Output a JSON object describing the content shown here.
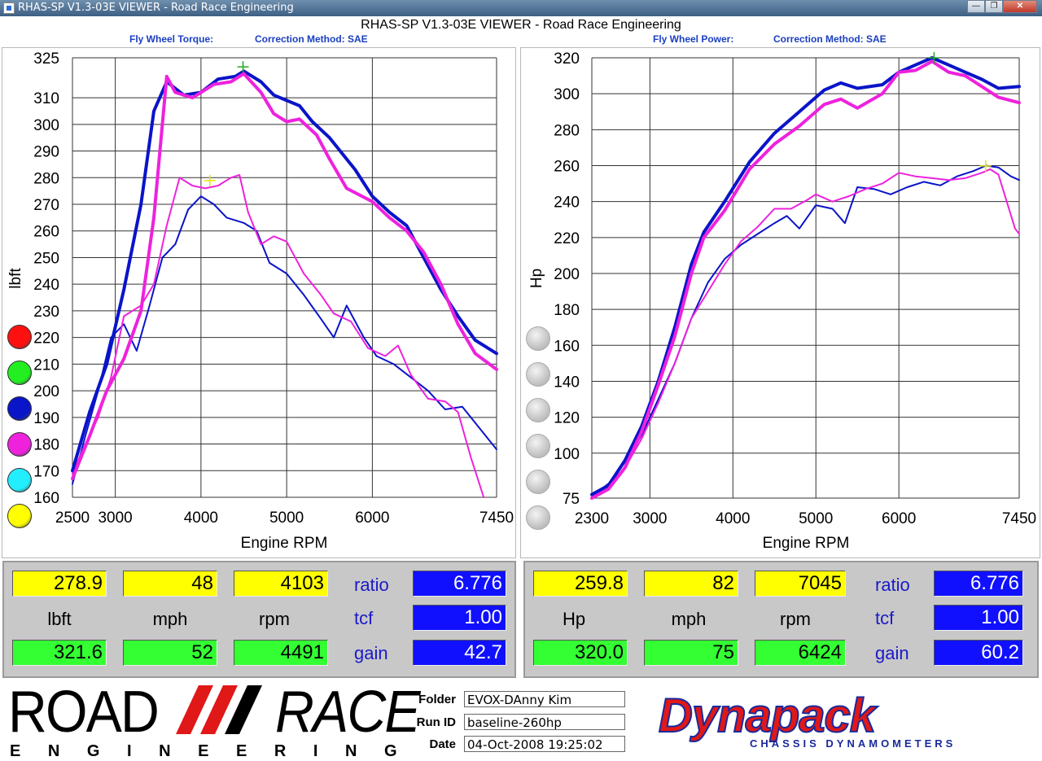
{
  "window": {
    "title": "RHAS-SP V1.3-03E VIEWER - Road Race Engineering"
  },
  "app_title": "RHAS-SP V1.3-03E VIEWER - Road Race Engineering",
  "left": {
    "heading": "Fly Wheel Torque:",
    "correction": "Correction Method: SAE",
    "readout": {
      "top_value": "278.9",
      "top_mph": "48",
      "top_rpm": "4103",
      "unit": "lbft",
      "mph_label": "mph",
      "rpm_label": "rpm",
      "bottom_value": "321.6",
      "bottom_mph": "52",
      "bottom_rpm": "4491",
      "ratio_label": "ratio",
      "ratio": "6.776",
      "tcf_label": "tcf",
      "tcf": "1.00",
      "gain_label": "gain",
      "gain": "42.7"
    }
  },
  "right": {
    "heading": "Fly Wheel Power:",
    "correction": "Correction Method: SAE",
    "readout": {
      "top_value": "259.8",
      "top_mph": "82",
      "top_rpm": "7045",
      "unit": "Hp",
      "mph_label": "mph",
      "rpm_label": "rpm",
      "bottom_value": "320.0",
      "bottom_mph": "75",
      "bottom_rpm": "6424",
      "ratio_label": "ratio",
      "ratio": "6.776",
      "tcf_label": "tcf",
      "tcf": "1.00",
      "gain_label": "gain",
      "gain": "60.2"
    }
  },
  "colors": {
    "red": "#ff1010",
    "green": "#22ee22",
    "blue": "#0a14c8",
    "magenta": "#ee22dd",
    "cyan": "#22eeff",
    "yellow": "#ffff00",
    "grey": "#cccccc"
  },
  "left_dots": [
    "red",
    "green",
    "blue",
    "magenta",
    "cyan",
    "yellow"
  ],
  "right_dots": [
    "grey",
    "grey",
    "grey",
    "grey",
    "grey",
    "grey"
  ],
  "footer": {
    "logo_left_top": "ROAD",
    "logo_left_right": "RACE",
    "logo_left_bottom": "E N G I N E E R I N G",
    "folder_label": "Folder",
    "folder": "EVOX-DAnny Kim",
    "runid_label": "Run ID",
    "runid": "baseline-260hp",
    "date_label": "Date",
    "date": "04-Oct-2008  19:25:02",
    "logo_right": "Dynapack",
    "logo_right_sub": "CHASSIS  DYNAMOMETERS"
  },
  "chart_data": [
    {
      "type": "line",
      "title": "Fly Wheel Torque",
      "xlabel": "Engine RPM",
      "ylabel": "lbft",
      "xlim": [
        2500,
        7450
      ],
      "ylim": [
        160,
        325
      ],
      "xticks": [
        2500,
        3000,
        4000,
        5000,
        6000,
        7450
      ],
      "yticks": [
        160,
        170,
        180,
        190,
        200,
        210,
        220,
        230,
        240,
        250,
        260,
        270,
        280,
        290,
        300,
        310,
        325
      ],
      "grid": true,
      "series": [
        {
          "color": "blue",
          "width": "thick",
          "points": [
            [
              2500,
              170
            ],
            [
              2700,
              192
            ],
            [
              2900,
              210
            ],
            [
              3100,
              238
            ],
            [
              3300,
              270
            ],
            [
              3450,
              305
            ],
            [
              3600,
              316
            ],
            [
              3800,
              311
            ],
            [
              4000,
              312
            ],
            [
              4200,
              317
            ],
            [
              4400,
              318
            ],
            [
              4500,
              320
            ],
            [
              4700,
              316
            ],
            [
              4850,
              311
            ],
            [
              5000,
              309
            ],
            [
              5150,
              307
            ],
            [
              5300,
              301
            ],
            [
              5500,
              295
            ],
            [
              5800,
              283
            ],
            [
              6000,
              273
            ],
            [
              6200,
              267
            ],
            [
              6400,
              262
            ],
            [
              6600,
              250
            ],
            [
              6800,
              238
            ],
            [
              7000,
              228
            ],
            [
              7200,
              219
            ],
            [
              7450,
              214
            ]
          ]
        },
        {
          "color": "magenta",
          "width": "thick",
          "points": [
            [
              2500,
              167
            ],
            [
              2700,
              183
            ],
            [
              2900,
              200
            ],
            [
              3100,
              212
            ],
            [
              3300,
              230
            ],
            [
              3450,
              265
            ],
            [
              3600,
              318
            ],
            [
              3700,
              312
            ],
            [
              3900,
              310
            ],
            [
              4150,
              315
            ],
            [
              4350,
              316
            ],
            [
              4500,
              319
            ],
            [
              4700,
              312
            ],
            [
              4850,
              304
            ],
            [
              5000,
              301
            ],
            [
              5150,
              302
            ],
            [
              5350,
              296
            ],
            [
              5500,
              287
            ],
            [
              5700,
              276
            ],
            [
              6000,
              271
            ],
            [
              6200,
              265
            ],
            [
              6400,
              260
            ],
            [
              6600,
              252
            ],
            [
              6800,
              240
            ],
            [
              7000,
              225
            ],
            [
              7200,
              214
            ],
            [
              7450,
              208
            ]
          ]
        },
        {
          "color": "blue",
          "width": "thin",
          "points": [
            [
              2500,
              165
            ],
            [
              2650,
              183
            ],
            [
              2800,
              200
            ],
            [
              2950,
              220
            ],
            [
              3100,
              225
            ],
            [
              3250,
              215
            ],
            [
              3400,
              232
            ],
            [
              3550,
              250
            ],
            [
              3700,
              255
            ],
            [
              3850,
              268
            ],
            [
              4000,
              273
            ],
            [
              4150,
              270
            ],
            [
              4300,
              265
            ],
            [
              4500,
              263
            ],
            [
              4650,
              260
            ],
            [
              4800,
              248
            ],
            [
              5000,
              244
            ],
            [
              5200,
              236
            ],
            [
              5400,
              227
            ],
            [
              5550,
              220
            ],
            [
              5700,
              232
            ],
            [
              5900,
              220
            ],
            [
              6050,
              213
            ],
            [
              6250,
              210
            ],
            [
              6450,
              205
            ],
            [
              6650,
              200
            ],
            [
              6850,
              193
            ],
            [
              7050,
              194
            ],
            [
              7250,
              186
            ],
            [
              7450,
              178
            ]
          ]
        },
        {
          "color": "magenta",
          "width": "thin",
          "points": [
            [
              2500,
              169
            ],
            [
              2650,
              180
            ],
            [
              2800,
              190
            ],
            [
              2950,
              205
            ],
            [
              3100,
              228
            ],
            [
              3300,
              232
            ],
            [
              3450,
              240
            ],
            [
              3600,
              262
            ],
            [
              3750,
              280
            ],
            [
              3900,
              277
            ],
            [
              4050,
              276
            ],
            [
              4200,
              277
            ],
            [
              4350,
              280
            ],
            [
              4450,
              281
            ],
            [
              4550,
              267
            ],
            [
              4700,
              255
            ],
            [
              4850,
              258
            ],
            [
              5000,
              256
            ],
            [
              5200,
              244
            ],
            [
              5400,
              236
            ],
            [
              5550,
              229
            ],
            [
              5750,
              226
            ],
            [
              5950,
              216
            ],
            [
              6150,
              213
            ],
            [
              6300,
              217
            ],
            [
              6450,
              206
            ],
            [
              6650,
              197
            ],
            [
              6850,
              196
            ],
            [
              7000,
              192
            ],
            [
              7150,
              175
            ],
            [
              7300,
              160
            ]
          ]
        }
      ],
      "markers": [
        {
          "color": "green",
          "x": 4491,
          "y": 321.6
        },
        {
          "color": "yellow",
          "x": 4103,
          "y": 278.9
        }
      ]
    },
    {
      "type": "line",
      "title": "Fly Wheel Power",
      "xlabel": "Engine RPM",
      "ylabel": "Hp",
      "xlim": [
        2300,
        7450
      ],
      "ylim": [
        75,
        320
      ],
      "xticks": [
        2300,
        3000,
        4000,
        5000,
        6000,
        7450
      ],
      "yticks": [
        75,
        100,
        120,
        140,
        160,
        180,
        200,
        220,
        240,
        260,
        280,
        300,
        320
      ],
      "grid": true,
      "series": [
        {
          "color": "blue",
          "width": "thick",
          "points": [
            [
              2300,
              77
            ],
            [
              2500,
              82
            ],
            [
              2700,
              96
            ],
            [
              2900,
              115
            ],
            [
              3100,
              140
            ],
            [
              3300,
              170
            ],
            [
              3500,
              205
            ],
            [
              3650,
              223
            ],
            [
              3900,
              240
            ],
            [
              4200,
              262
            ],
            [
              4500,
              278
            ],
            [
              4800,
              290
            ],
            [
              5100,
              302
            ],
            [
              5300,
              306
            ],
            [
              5500,
              303
            ],
            [
              5800,
              305
            ],
            [
              6000,
              312
            ],
            [
              6200,
              316
            ],
            [
              6400,
              320
            ],
            [
              6600,
              316
            ],
            [
              6800,
              312
            ],
            [
              7000,
              308
            ],
            [
              7200,
              303
            ],
            [
              7450,
              304
            ]
          ]
        },
        {
          "color": "magenta",
          "width": "thick",
          "points": [
            [
              2300,
              75
            ],
            [
              2500,
              80
            ],
            [
              2700,
              92
            ],
            [
              2900,
              112
            ],
            [
              3100,
              138
            ],
            [
              3300,
              165
            ],
            [
              3500,
              200
            ],
            [
              3650,
              220
            ],
            [
              3900,
              235
            ],
            [
              4200,
              258
            ],
            [
              4500,
              272
            ],
            [
              4800,
              282
            ],
            [
              5100,
              294
            ],
            [
              5300,
              297
            ],
            [
              5500,
              292
            ],
            [
              5800,
              300
            ],
            [
              6000,
              312
            ],
            [
              6200,
              313
            ],
            [
              6400,
              318
            ],
            [
              6600,
              312
            ],
            [
              6800,
              310
            ],
            [
              7000,
              304
            ],
            [
              7200,
              298
            ],
            [
              7450,
              295
            ]
          ]
        },
        {
          "color": "blue",
          "width": "thin",
          "points": [
            [
              2300,
              76
            ],
            [
              2500,
              83
            ],
            [
              2700,
              95
            ],
            [
              2900,
              110
            ],
            [
              3100,
              130
            ],
            [
              3300,
              150
            ],
            [
              3500,
              175
            ],
            [
              3700,
              195
            ],
            [
              3900,
              208
            ],
            [
              4100,
              216
            ],
            [
              4300,
              222
            ],
            [
              4500,
              228
            ],
            [
              4650,
              232
            ],
            [
              4800,
              225
            ],
            [
              5000,
              238
            ],
            [
              5200,
              236
            ],
            [
              5350,
              228
            ],
            [
              5500,
              248
            ],
            [
              5700,
              247
            ],
            [
              5900,
              244
            ],
            [
              6100,
              248
            ],
            [
              6300,
              251
            ],
            [
              6500,
              249
            ],
            [
              6700,
              254
            ],
            [
              6900,
              257
            ],
            [
              7050,
              260
            ],
            [
              7200,
              259
            ],
            [
              7350,
              254
            ],
            [
              7450,
              252
            ]
          ]
        },
        {
          "color": "magenta",
          "width": "thin",
          "points": [
            [
              2300,
              76
            ],
            [
              2500,
              82
            ],
            [
              2700,
              92
            ],
            [
              2900,
              108
            ],
            [
              3100,
              128
            ],
            [
              3300,
              150
            ],
            [
              3500,
              175
            ],
            [
              3700,
              190
            ],
            [
              3900,
              205
            ],
            [
              4100,
              218
            ],
            [
              4300,
              226
            ],
            [
              4500,
              236
            ],
            [
              4700,
              236
            ],
            [
              4900,
              241
            ],
            [
              5000,
              244
            ],
            [
              5200,
              240
            ],
            [
              5400,
              243
            ],
            [
              5600,
              247
            ],
            [
              5800,
              250
            ],
            [
              6000,
              256
            ],
            [
              6200,
              254
            ],
            [
              6400,
              253
            ],
            [
              6600,
              252
            ],
            [
              6800,
              253
            ],
            [
              7000,
              256
            ],
            [
              7100,
              258
            ],
            [
              7200,
              255
            ],
            [
              7300,
              240
            ],
            [
              7400,
              225
            ],
            [
              7450,
              222
            ]
          ]
        }
      ],
      "markers": [
        {
          "color": "green",
          "x": 6424,
          "y": 320.0
        },
        {
          "color": "yellow",
          "x": 7045,
          "y": 259.8
        }
      ]
    }
  ]
}
